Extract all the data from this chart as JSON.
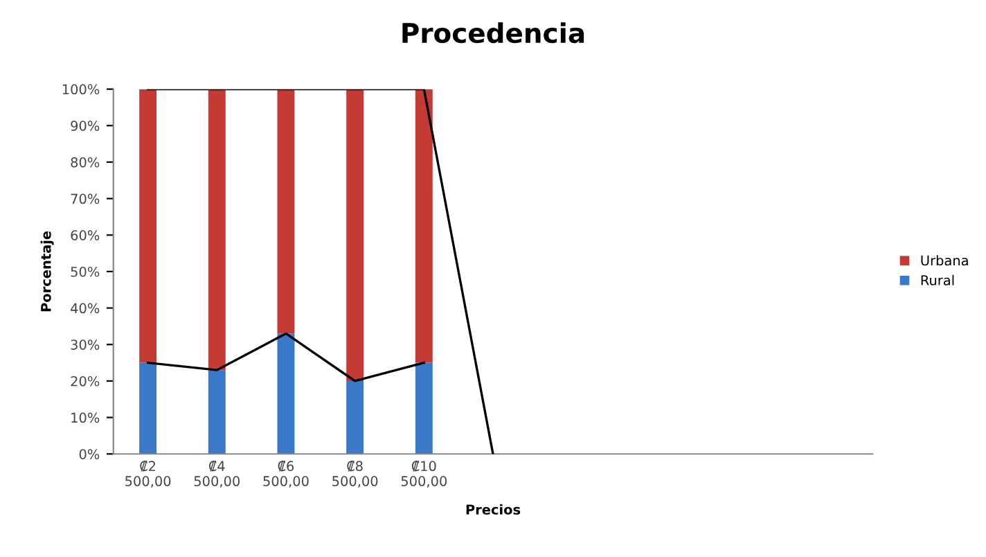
{
  "chart_data": {
    "type": "bar",
    "stacked": true,
    "title": "Procedencia",
    "xlabel": "Precios",
    "ylabel": "Porcentaje",
    "categories": [
      "₡2\n500,00",
      "₡4\n500,00",
      "₡6\n500,00",
      "₡8\n500,00",
      "₡10\n500,00",
      null,
      null,
      null,
      null,
      null,
      null
    ],
    "series": [
      {
        "name": "Rural",
        "color": "#3a78c8",
        "values": [
          25,
          23,
          33,
          20,
          25,
          null,
          null,
          null,
          null,
          null,
          null
        ]
      },
      {
        "name": "Urbana",
        "color": "#c43a35",
        "values": [
          75,
          77,
          67,
          80,
          75,
          null,
          null,
          null,
          null,
          null,
          null
        ]
      },
      {
        "type": "line",
        "color": "#000000",
        "values": [
          25,
          23,
          33,
          20,
          25,
          null,
          null,
          null,
          null,
          null,
          null
        ]
      },
      {
        "type": "line",
        "color": "#000000",
        "values": [
          100,
          100,
          100,
          100,
          100,
          0,
          null,
          null,
          null,
          null,
          null
        ]
      }
    ],
    "ylim": [
      0,
      100
    ],
    "yticks": [
      {
        "value": 0,
        "label": "0%"
      },
      {
        "value": 10,
        "label": "10%"
      },
      {
        "value": 20,
        "label": "20%"
      },
      {
        "value": 30,
        "label": "30%"
      },
      {
        "value": 40,
        "label": "40%"
      },
      {
        "value": 50,
        "label": "50%"
      },
      {
        "value": 60,
        "label": "60%"
      },
      {
        "value": 70,
        "label": "70%"
      },
      {
        "value": 80,
        "label": "80%"
      },
      {
        "value": 90,
        "label": "90%"
      },
      {
        "value": 100,
        "label": "100%"
      }
    ],
    "grid": false,
    "legend": "right"
  }
}
